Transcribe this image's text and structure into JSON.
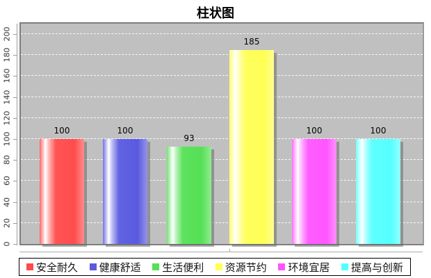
{
  "title": "柱状图",
  "chart_data": {
    "type": "bar",
    "title": "柱状图",
    "categories": [
      "安全耐久",
      "健康舒适",
      "生活便利",
      "资源节约",
      "环境宜居",
      "提高与创新"
    ],
    "values": [
      100,
      100,
      93,
      185,
      100,
      100
    ],
    "value_labels": [
      "100",
      "100",
      "93",
      "185",
      "100",
      "100"
    ],
    "bar_colors": [
      "#ff4c4c",
      "#5a5ae0",
      "#55e055",
      "#ffff55",
      "#ff55ff",
      "#55ffff"
    ],
    "xlabel": "",
    "ylabel": "",
    "ylim": [
      0,
      210
    ],
    "yticks": [
      0,
      20,
      40,
      60,
      80,
      100,
      120,
      140,
      160,
      180,
      200
    ],
    "grid": "horizontal white dashed lines on gray plot background",
    "plot_background": "#c0c0c0",
    "legend_position": "bottom"
  },
  "legend": {
    "items": [
      {
        "label": "安全耐久",
        "color": "#ff4c4c"
      },
      {
        "label": "健康舒适",
        "color": "#5a5ae0"
      },
      {
        "label": "生活便利",
        "color": "#55e055"
      },
      {
        "label": "资源节约",
        "color": "#ffff55"
      },
      {
        "label": "环境宜居",
        "color": "#ff55ff"
      },
      {
        "label": "提高与创新",
        "color": "#55ffff"
      }
    ]
  }
}
